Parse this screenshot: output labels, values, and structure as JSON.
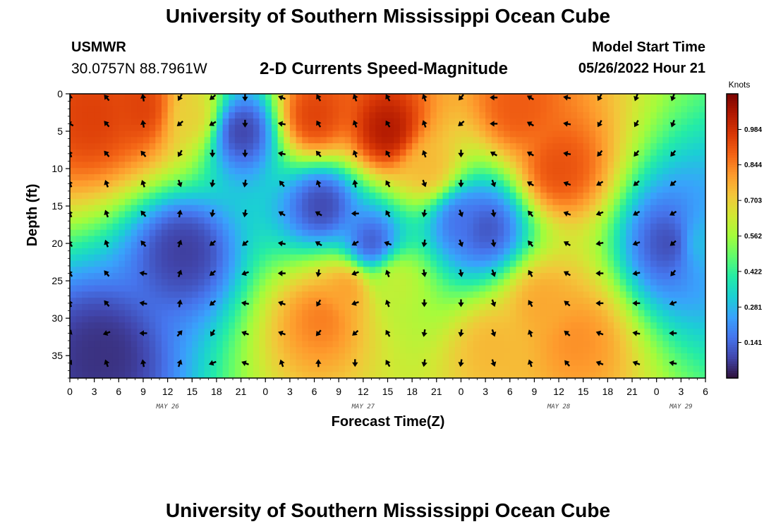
{
  "header": {
    "title": "University of Southern Mississippi Ocean Cube",
    "station": "USMWR",
    "coordinates": "30.0757N  88.7961W",
    "subtitle": "2-D Currents Speed-Magnitude",
    "model_start_label": "Model Start Time",
    "model_start_value": "05/26/2022 Hour 21"
  },
  "footer": {
    "title": "University of Southern Mississippi Ocean Cube"
  },
  "chart_data": {
    "type": "heatmap",
    "xlabel": "Forecast Time(Z)",
    "ylabel": "Depth (ft)",
    "x_range": [
      0,
      78
    ],
    "y_range": [
      0,
      38
    ],
    "x_tick_labels": [
      "0",
      "3",
      "6",
      "9",
      "12",
      "15",
      "18",
      "21",
      "0",
      "3",
      "6",
      "9",
      "12",
      "15",
      "18",
      "21",
      "0",
      "3",
      "6",
      "9",
      "12",
      "15",
      "18",
      "21",
      "0",
      "3",
      "6"
    ],
    "date_labels": [
      "MAY 26",
      "MAY 27",
      "MAY 28",
      "MAY 29"
    ],
    "y_tick_labels": [
      "0",
      "5",
      "10",
      "15",
      "20",
      "25",
      "30",
      "35"
    ],
    "y_ticks": [
      0,
      5,
      10,
      15,
      20,
      25,
      30,
      35
    ],
    "colorbar": {
      "title": "Knots",
      "tick_labels": [
        "0.984",
        "0.844",
        "0.703",
        "0.562",
        "0.422",
        "0.281",
        "0.141"
      ],
      "ticks": [
        0.984,
        0.844,
        0.703,
        0.562,
        0.422,
        0.281,
        0.141
      ],
      "range": [
        0,
        1.125
      ],
      "colormap": [
        "#30123b",
        "#4145ab",
        "#4675ed",
        "#39a2fc",
        "#1bcfd4",
        "#24eca6",
        "#61fc6c",
        "#a4fc3b",
        "#d1e834",
        "#f3c63a",
        "#fe9b2d",
        "#f36315",
        "#d93806",
        "#b11901",
        "#7a0402"
      ]
    },
    "speed_hotspots": [
      {
        "hour": 3,
        "depth": 3,
        "speed": 0.95
      },
      {
        "hour": 9,
        "depth": 2,
        "speed": 0.95
      },
      {
        "hour": 15,
        "depth": 3,
        "speed": 0.7
      },
      {
        "hour": 14,
        "depth": 21,
        "speed": 0.07
      },
      {
        "hour": 4,
        "depth": 35,
        "speed": 0.05
      },
      {
        "hour": 21,
        "depth": 5,
        "speed": 0.07
      },
      {
        "hour": 31,
        "depth": 15,
        "speed": 0.08
      },
      {
        "hour": 37,
        "depth": 20,
        "speed": 0.1
      },
      {
        "hour": 39,
        "depth": 5,
        "speed": 1.05
      },
      {
        "hour": 30,
        "depth": 3,
        "speed": 0.95
      },
      {
        "hour": 44,
        "depth": 10,
        "speed": 0.75
      },
      {
        "hour": 40,
        "depth": 25,
        "speed": 0.62
      },
      {
        "hour": 31,
        "depth": 30,
        "speed": 0.85
      },
      {
        "hour": 34,
        "depth": 26,
        "speed": 0.8
      },
      {
        "hour": 48,
        "depth": 17,
        "speed": 0.15
      },
      {
        "hour": 55,
        "depth": 2,
        "speed": 0.9
      },
      {
        "hour": 60,
        "depth": 10,
        "speed": 0.92
      },
      {
        "hour": 58,
        "depth": 28,
        "speed": 0.78
      },
      {
        "hour": 52,
        "depth": 34,
        "speed": 0.75
      },
      {
        "hour": 62,
        "depth": 33,
        "speed": 0.82
      },
      {
        "hour": 51,
        "depth": 18,
        "speed": 0.1
      },
      {
        "hour": 74,
        "depth": 20,
        "speed": 0.08
      },
      {
        "hour": 77,
        "depth": 20,
        "speed": 0.3
      }
    ],
    "arrow_columns_hours": [
      0,
      4.5,
      9,
      13.5,
      17.5,
      21.5,
      26,
      30.5,
      35,
      39,
      43.5,
      48,
      52,
      56.5,
      61,
      65,
      69.5,
      74
    ],
    "arrow_rows_depth": [
      0.5,
      4,
      8,
      12,
      16,
      20,
      24,
      28,
      32,
      36
    ],
    "arrow_direction_columns": [
      [
        0,
        300,
        335,
        335,
        335,
        325,
        325,
        340,
        20,
        30
      ],
      [
        320,
        320,
        320,
        340,
        340,
        340,
        320,
        320,
        250,
        340
      ],
      [
        350,
        350,
        320,
        340,
        320,
        320,
        280,
        280,
        270,
        350
      ],
      [
        210,
        230,
        210,
        160,
        10,
        20,
        20,
        10,
        40,
        20
      ],
      [
        230,
        240,
        180,
        190,
        190,
        230,
        230,
        230,
        210,
        250
      ],
      [
        180,
        180,
        180,
        190,
        190,
        230,
        250,
        280,
        290,
        290
      ],
      [
        290,
        280,
        280,
        320,
        300,
        280,
        270,
        290,
        290,
        340
      ],
      [
        330,
        330,
        320,
        340,
        300,
        300,
        190,
        210,
        220,
        360
      ],
      [
        340,
        340,
        340,
        350,
        270,
        240,
        250,
        250,
        230,
        180
      ],
      [
        330,
        330,
        330,
        330,
        330,
        290,
        340,
        340,
        330,
        330
      ],
      [
        340,
        340,
        340,
        160,
        190,
        190,
        170,
        180,
        190,
        190
      ],
      [
        220,
        230,
        180,
        180,
        160,
        160,
        170,
        180,
        190,
        190
      ],
      [
        270,
        270,
        300,
        160,
        170,
        170,
        160,
        160,
        160,
        160
      ],
      [
        300,
        300,
        300,
        300,
        320,
        320,
        330,
        330,
        340,
        340
      ],
      [
        280,
        280,
        280,
        290,
        290,
        300,
        300,
        310,
        310,
        320
      ],
      [
        210,
        210,
        220,
        240,
        250,
        260,
        270,
        270,
        290,
        290
      ],
      [
        200,
        210,
        220,
        230,
        240,
        250,
        260,
        270,
        280,
        290
      ],
      [
        200,
        200,
        220,
        230,
        240,
        230,
        220,
        250,
        270,
        280
      ]
    ]
  }
}
